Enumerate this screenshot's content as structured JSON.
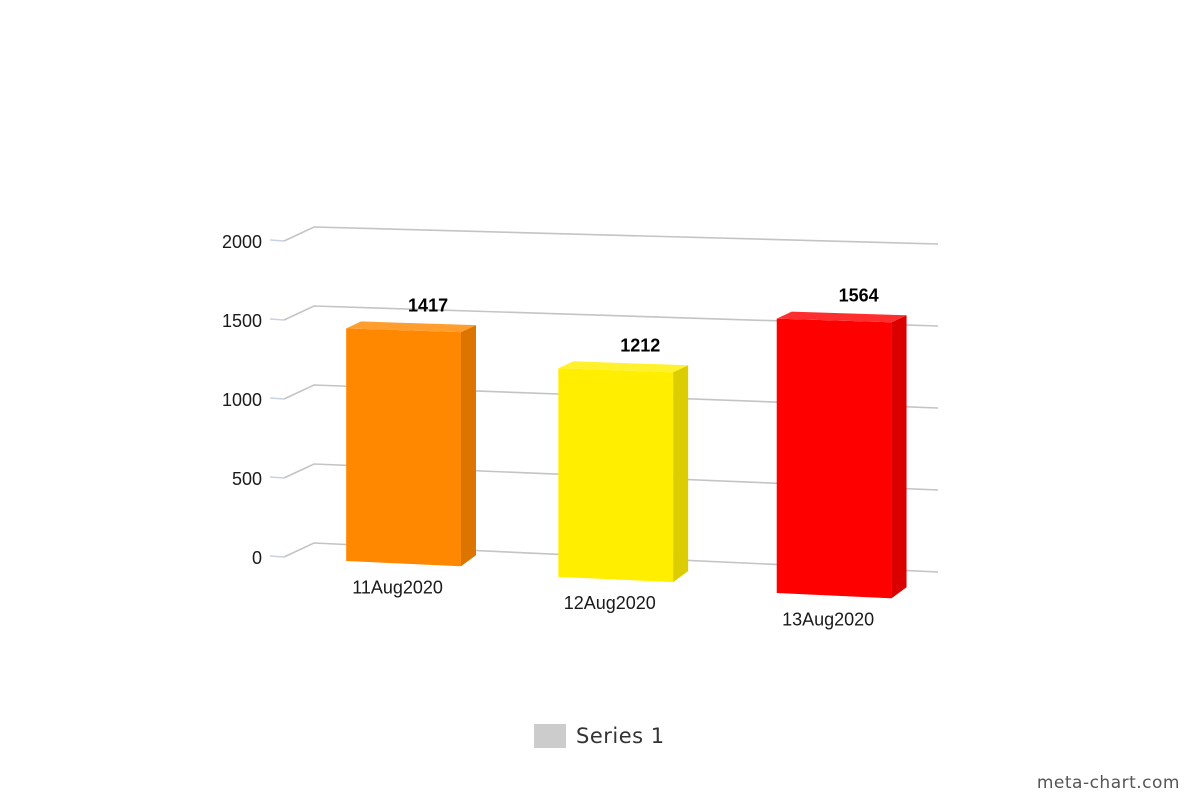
{
  "chart_data": {
    "type": "bar",
    "style": "3d",
    "categories": [
      "11Aug2020",
      "12Aug2020",
      "13Aug2020"
    ],
    "series": [
      {
        "name": "Series 1",
        "values": [
          1417,
          1212,
          1564
        ]
      }
    ],
    "data_labels": [
      "1417",
      "1212",
      "1564"
    ],
    "bar_colors": [
      "#ff8800",
      "#ffee00",
      "#ff0000"
    ],
    "ylim": [
      0,
      2000
    ],
    "yticks": [
      0,
      500,
      1000,
      1500,
      2000
    ],
    "ytick_labels": [
      "0",
      "500",
      "1000",
      "1500",
      "2000"
    ],
    "grid": true,
    "legend": {
      "position": "bottom",
      "label": "Series 1",
      "swatch_color": "#cccccc"
    },
    "title": "",
    "xlabel": "",
    "ylabel": ""
  },
  "credit": "meta-chart.com"
}
